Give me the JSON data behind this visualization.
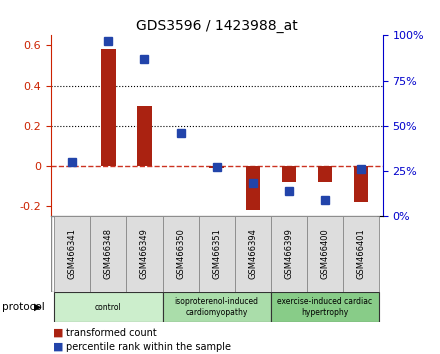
{
  "title": "GDS3596 / 1423988_at",
  "samples": [
    "GSM466341",
    "GSM466348",
    "GSM466349",
    "GSM466350",
    "GSM466351",
    "GSM466394",
    "GSM466399",
    "GSM466400",
    "GSM466401"
  ],
  "transformed_count": [
    0.0,
    0.58,
    0.3,
    0.0,
    -0.01,
    -0.22,
    -0.08,
    -0.08,
    -0.18
  ],
  "percentile_rank": [
    30,
    97,
    87,
    46,
    27,
    18,
    14,
    9,
    26
  ],
  "bar_color": "#aa2211",
  "dot_color": "#2244aa",
  "groups": [
    {
      "label": "control",
      "start": 0,
      "end": 3,
      "color": "#cceecc"
    },
    {
      "label": "isoproterenol-induced\ncardiomyopathy",
      "start": 3,
      "end": 6,
      "color": "#aaddaa"
    },
    {
      "label": "exercise-induced cardiac\nhypertrophy",
      "start": 6,
      "end": 9,
      "color": "#88cc88"
    }
  ],
  "ylim_left": [
    -0.25,
    0.65
  ],
  "ylim_right": [
    0,
    100
  ],
  "yticks_left": [
    -0.2,
    0.0,
    0.2,
    0.4,
    0.6
  ],
  "yticks_right": [
    0,
    25,
    50,
    75,
    100
  ],
  "ylabel_left_color": "#cc2200",
  "ylabel_right_color": "#0000cc",
  "grid_dotted_vals": [
    0.2,
    0.4
  ],
  "grid_color": "black",
  "dashed_zero_color": "#cc3322",
  "bg_color": "#ffffff",
  "bar_width": 0.4,
  "dot_marker_size": 6
}
